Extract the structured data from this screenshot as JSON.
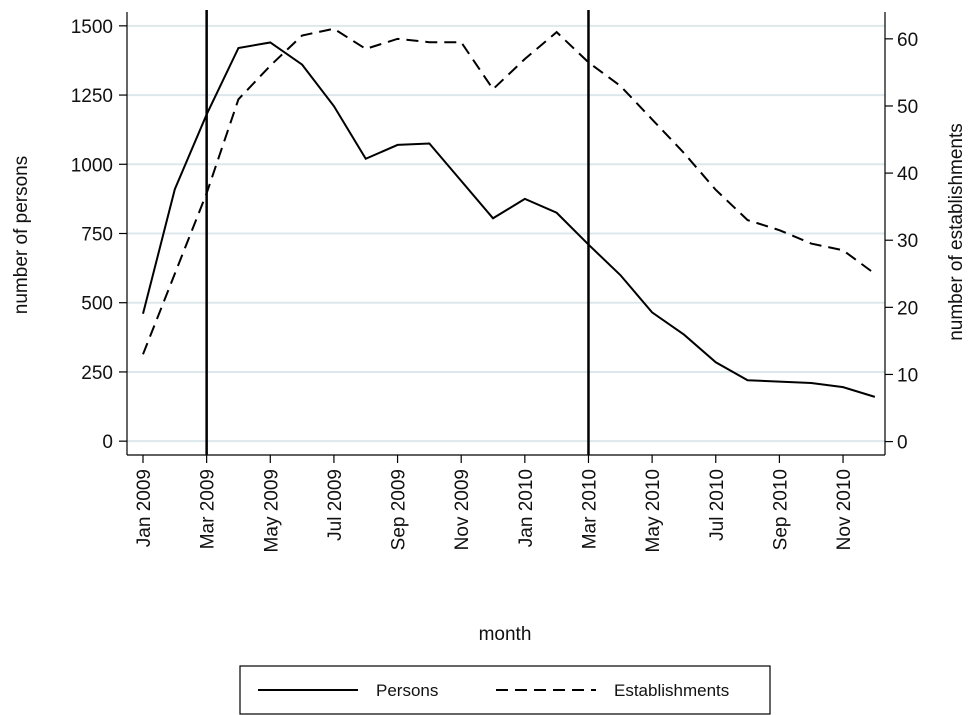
{
  "chart_data": {
    "type": "line",
    "x_label": "month",
    "y_label": "number of persons",
    "y2_label": "number of establishments",
    "categories": [
      "Jan 2009",
      null,
      "Mar 2009",
      null,
      "May 2009",
      null,
      "Jul 2009",
      null,
      "Sep 2009",
      null,
      "Nov 2009",
      null,
      "Jan 2010",
      null,
      "Mar 2010",
      null,
      "May 2010",
      null,
      "Jul 2010",
      null,
      "Sep 2010",
      null,
      "Nov 2010",
      null
    ],
    "series": [
      {
        "name": "Persons",
        "color": "#000000",
        "dash": "solid",
        "axis": "y",
        "values": [
          460,
          910,
          1180,
          1420,
          1440,
          1360,
          1210,
          1020,
          1070,
          1075,
          940,
          805,
          875,
          825,
          710,
          600,
          465,
          385,
          285,
          220,
          215,
          210,
          195,
          160
        ]
      },
      {
        "name": "Establishments",
        "color": "#000000",
        "dash": "dashed",
        "axis": "y2",
        "values": [
          13,
          25,
          37,
          51,
          56,
          60.5,
          61.5,
          58.5,
          60,
          59.5,
          59.5,
          52.5,
          57,
          61,
          56.5,
          53,
          48,
          43,
          37.5,
          33,
          31.5,
          29.5,
          28.5,
          25
        ]
      }
    ],
    "reference_lines": [
      "Mar 2009",
      "Mar 2010"
    ],
    "ylim": [
      -50,
      1550
    ],
    "yticks": [
      0,
      250,
      500,
      750,
      1000,
      1250,
      1500
    ],
    "y2lim": [
      -2,
      64
    ],
    "y2ticks": [
      0,
      10,
      20,
      30,
      40,
      50,
      60
    ],
    "grid": true,
    "legend": "bottom"
  }
}
